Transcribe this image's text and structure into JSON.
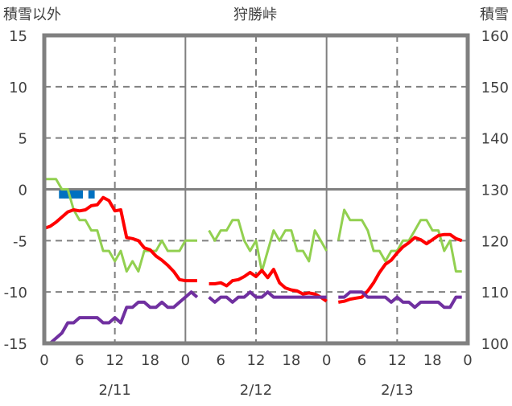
{
  "chart_data": {
    "type": "line",
    "title": "狩勝峠",
    "ylabel_left": "積雪以外",
    "ylabel_right": "積雪",
    "ylim_left": [
      -15,
      15
    ],
    "ylim_right": [
      100,
      160
    ],
    "yticks_left": [
      "15",
      "10",
      "5",
      "0",
      "-5",
      "-10",
      "-15"
    ],
    "yticks_right": [
      "160",
      "150",
      "140",
      "130",
      "120",
      "110",
      "100"
    ],
    "xlim_hours": [
      0,
      72
    ],
    "xticks": [
      "0",
      "6",
      "12",
      "18",
      "0",
      "6",
      "12",
      "18",
      "0",
      "6",
      "12",
      "18",
      "0"
    ],
    "dates": [
      "2/11",
      "2/12",
      "2/13"
    ],
    "grid": true,
    "series": [
      {
        "name": "green",
        "color": "#92d050",
        "segments": [
          {
            "start_hour": 0,
            "values": [
              1,
              1,
              1,
              0,
              0,
              -2,
              -3,
              -3,
              -4,
              -4,
              -6,
              -6,
              -7,
              -6,
              -8,
              -7,
              -8,
              -6,
              -6,
              -6,
              -5,
              -6,
              -6,
              -6,
              -5,
              -5,
              -5
            ]
          },
          {
            "start_hour": 28,
            "values": [
              -4,
              -5,
              -4,
              -4,
              -3,
              -3,
              -5,
              -6,
              -5,
              -8,
              -6,
              -4,
              -5,
              -4,
              -4,
              -6,
              -6,
              -7,
              -4,
              -5,
              -6
            ]
          },
          {
            "start_hour": 50,
            "values": [
              -5,
              -2,
              -3,
              -3,
              -3,
              -4,
              -6,
              -6,
              -7,
              -6,
              -6,
              -5,
              -5,
              -4,
              -3,
              -3,
              -4,
              -4,
              -6,
              -5,
              -8,
              -8
            ]
          }
        ]
      },
      {
        "name": "red",
        "color": "#ff0000",
        "segments": [
          {
            "start_hour": 0,
            "values": [
              -3.8,
              -3.6,
              -3.2,
              -2.7,
              -2.2,
              -2,
              -2.1,
              -2,
              -1.6,
              -1.5,
              -0.8,
              -1.1,
              -2.1,
              -2,
              -4.7,
              -4.8,
              -5,
              -5.7,
              -5.9,
              -6.5,
              -6.9,
              -7.4,
              -8,
              -8.8,
              -8.9,
              -8.9,
              -8.9
            ]
          },
          {
            "start_hour": 28,
            "values": [
              -9.2,
              -9.2,
              -9.1,
              -9.4,
              -8.9,
              -8.8,
              -8.5,
              -8.1,
              -8.5,
              -7.9,
              -8.6,
              -7.8,
              -9.1,
              -9.6,
              -9.8,
              -9.9,
              -10.2,
              -10.1,
              -10.2,
              -10.5,
              -10.9
            ]
          },
          {
            "start_hour": 50,
            "values": [
              -11,
              -10.9,
              -10.7,
              -10.6,
              -10.5,
              -9.9,
              -9.1,
              -8.1,
              -7.3,
              -6.9,
              -6.2,
              -5.6,
              -5.2,
              -4.7,
              -4.9,
              -5.3,
              -4.9,
              -4.5,
              -4.4,
              -4.4,
              -4.8,
              -5
            ]
          }
        ]
      },
      {
        "name": "purple",
        "color": "#7030a0",
        "segments": [
          {
            "start_hour": 0,
            "values": [
              -15,
              -15,
              -14.5,
              -14,
              -13,
              -13,
              -12.5,
              -12.5,
              -12.5,
              -12.5,
              -13,
              -13,
              -12.5,
              -13,
              -11.5,
              -11.5,
              -11,
              -11,
              -11.5,
              -11.5,
              -11,
              -11.5,
              -11.5,
              -11,
              -10.5,
              -10,
              -10.5
            ]
          },
          {
            "start_hour": 28,
            "values": [
              -10.5,
              -11,
              -10.5,
              -10.5,
              -11,
              -10.5,
              -10.5,
              -10,
              -10.5,
              -10.5,
              -10,
              -10.5,
              -10.5,
              -10.5,
              -10.5,
              -10.5,
              -10.5,
              -10.5,
              -10.5,
              -10.5,
              -10.5
            ]
          },
          {
            "start_hour": 50,
            "values": [
              -10.5,
              -10.5,
              -10,
              -10,
              -10,
              -10.5,
              -10.5,
              -10.5,
              -10.5,
              -11,
              -10.5,
              -11,
              -11,
              -11.5,
              -11,
              -11,
              -11,
              -11,
              -11.5,
              -11.5,
              -10.5,
              -10.5
            ]
          }
        ]
      }
    ],
    "markers": {
      "name": "blue",
      "color": "#0070c0",
      "value": -0.5,
      "hours": [
        3,
        4,
        5,
        6,
        8
      ]
    }
  }
}
